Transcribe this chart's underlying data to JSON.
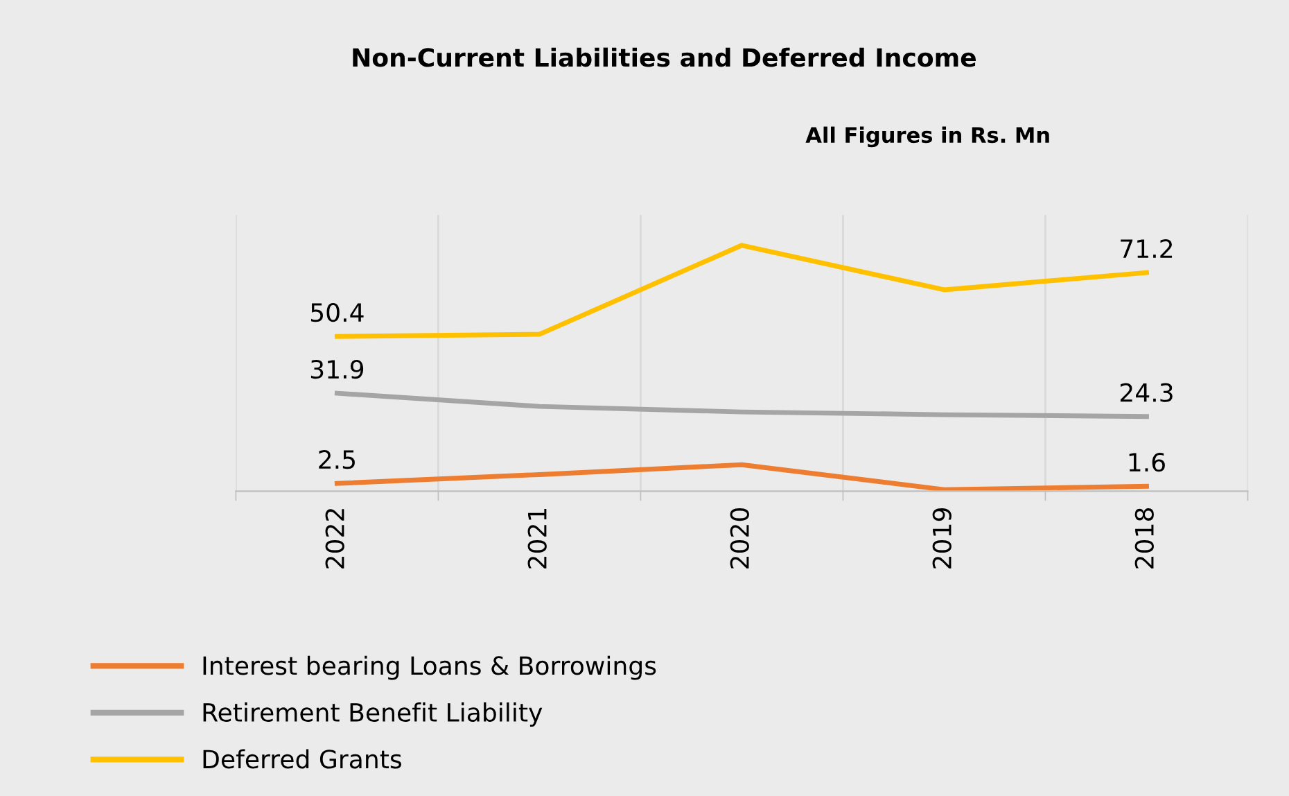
{
  "chart_data": {
    "type": "line",
    "title": "Non-Current Liabilities and Deferred Income",
    "subtitle": "All Figures in Rs. Mn",
    "categories": [
      "2022",
      "2021",
      "2020",
      "2019",
      "2018"
    ],
    "series": [
      {
        "name": "Interest bearing Loans & Borrowings",
        "color": "#ed7d31",
        "values": [
          2.5,
          5.4,
          8.6,
          0.5,
          1.6
        ],
        "value_labels": [
          "2.5",
          null,
          null,
          null,
          "1.6"
        ]
      },
      {
        "name": "Retirement Benefit Liability",
        "color": "#a5a5a5",
        "values": [
          31.9,
          27.6,
          25.8,
          24.9,
          24.3
        ],
        "value_labels": [
          "31.9",
          null,
          null,
          null,
          "24.3"
        ]
      },
      {
        "name": "Deferred Grants",
        "color": "#ffc000",
        "values": [
          50.4,
          51.1,
          80.1,
          65.6,
          71.2
        ],
        "value_labels": [
          "50.4",
          null,
          null,
          null,
          "71.2"
        ]
      }
    ],
    "ylim": [
      0,
      90
    ],
    "tick_labels": "x",
    "grid": "x",
    "legend": "bottom",
    "marker": "none",
    "line_style": "solid"
  }
}
